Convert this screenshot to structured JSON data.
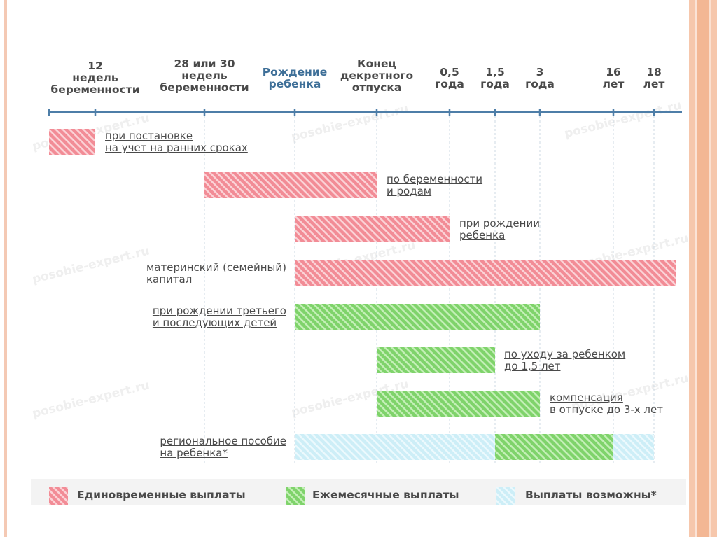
{
  "timeline": {
    "markers": [
      {
        "id": "12w",
        "label": "12\nнедель\nбеременности",
        "highlight": false
      },
      {
        "id": "28w",
        "label": "28 или 30\nнедель\nбеременности",
        "highlight": false
      },
      {
        "id": "birth",
        "label": "Рождение\nребенка",
        "highlight": true
      },
      {
        "id": "leave-end",
        "label": "Конец\nдекретного\nотпуска",
        "highlight": false
      },
      {
        "id": "0.5y",
        "label": "0,5\nгода",
        "highlight": false
      },
      {
        "id": "1.5y",
        "label": "1,5\nгода",
        "highlight": false
      },
      {
        "id": "3y",
        "label": "3\nгода",
        "highlight": false
      },
      {
        "id": "16y",
        "label": "16\nлет",
        "highlight": false
      },
      {
        "id": "18y",
        "label": "18\nлет",
        "highlight": false
      }
    ]
  },
  "benefits": [
    {
      "label": "при постановке\nна учет на ранних сроках",
      "kind": "one-time",
      "from": "start",
      "to": "12w"
    },
    {
      "label": "по беременности\nи родам",
      "kind": "one-time",
      "from": "28w",
      "to": "leave-end"
    },
    {
      "label": "при рождении\nребенка",
      "kind": "one-time",
      "from": "birth",
      "to": "0.5y"
    },
    {
      "label": "материнский (семейный)\nкапитал",
      "kind": "one-time",
      "from": "birth",
      "to": "end"
    },
    {
      "label": "при рождении третьего\nи последующих детей",
      "kind": "monthly",
      "from": "birth",
      "to": "3y"
    },
    {
      "label": "по уходу за ребенком\nдо 1,5 лет",
      "kind": "monthly",
      "from": "leave-end",
      "to": "1.5y"
    },
    {
      "label": "компенсация\nв отпуске до 3-х лет",
      "kind": "monthly",
      "from": "leave-end",
      "to": "3y"
    },
    {
      "label": "региональное пособие\nна ребенка*",
      "kind": "possible",
      "from": "birth",
      "to": "18y",
      "monthly_from": "1.5y",
      "monthly_to": "16y"
    }
  ],
  "legend": [
    {
      "kind": "one-time",
      "label": "Единовременные выплаты"
    },
    {
      "kind": "monthly",
      "label": "Ежемесячные выплаты"
    },
    {
      "kind": "possible",
      "label": "Выплаты возможны*"
    }
  ],
  "colors": {
    "one-time": "#f28c96",
    "monthly": "#7fd36b",
    "possible": "#cdeef7",
    "axis": "#4e7ea8"
  },
  "watermark": "posobie-expert.ru"
}
